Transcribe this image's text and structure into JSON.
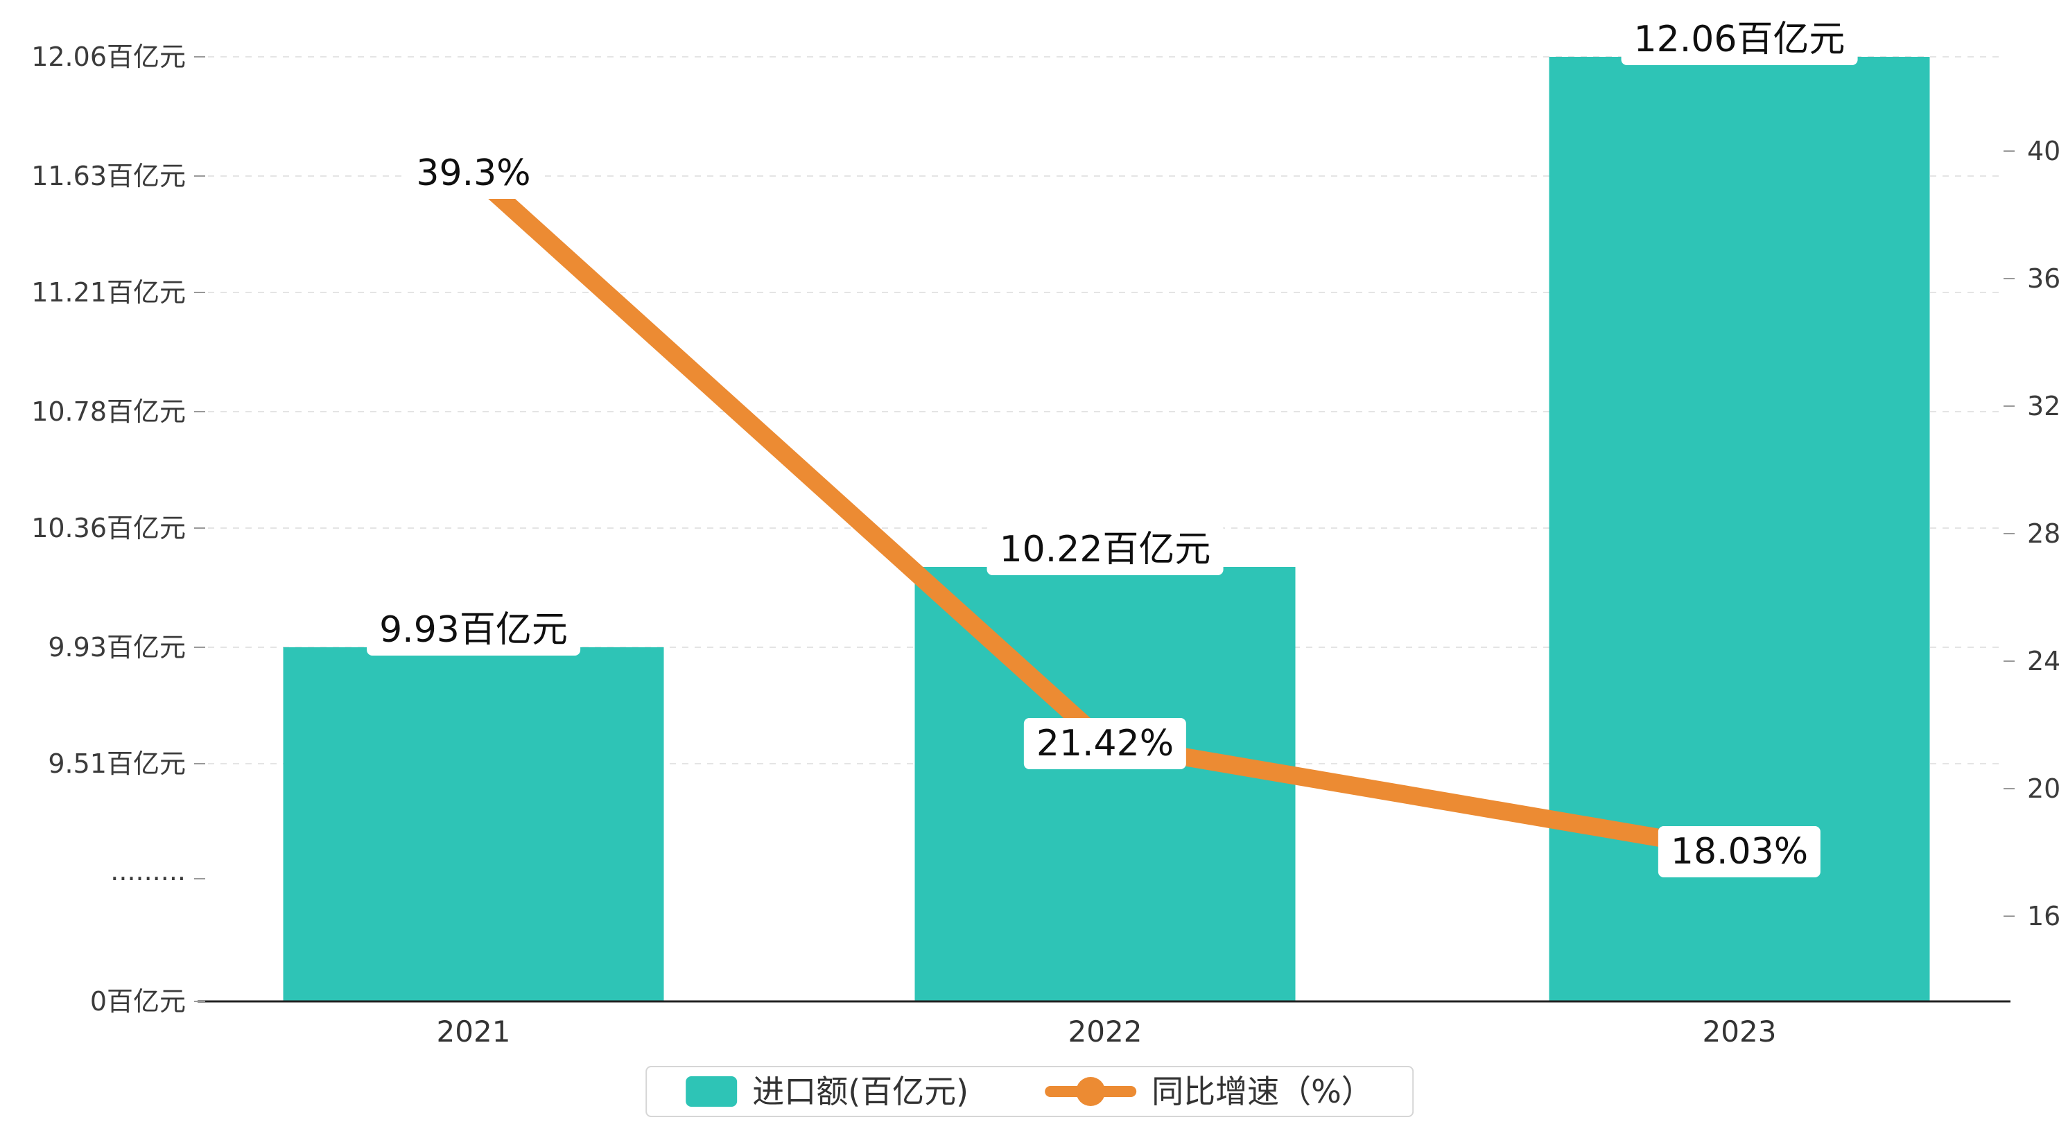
{
  "chart_data": {
    "type": "bar+line",
    "categories": [
      "2021",
      "2022",
      "2023"
    ],
    "series": [
      {
        "name": "进口额(百亿元)",
        "type": "bar",
        "axis": "left",
        "values": [
          9.93,
          10.22,
          12.06
        ],
        "value_labels": [
          "9.93百亿元",
          "10.22百亿元",
          "12.06百亿元"
        ],
        "color": "#2ec4b6"
      },
      {
        "name": "同比增速（%）",
        "type": "line",
        "axis": "right",
        "values": [
          39.3,
          21.42,
          18.03
        ],
        "value_labels": [
          "39.3%",
          "21.42%",
          "18.03%"
        ],
        "color": "#ec8b33"
      }
    ],
    "left_axis": {
      "has_break": true,
      "ticks": [
        {
          "label": "12.06百亿元",
          "value": 12.06
        },
        {
          "label": "11.63百亿元",
          "value": 11.63
        },
        {
          "label": "11.21百亿元",
          "value": 11.21
        },
        {
          "label": "10.78百亿元",
          "value": 10.78
        },
        {
          "label": "10.36百亿元",
          "value": 10.36
        },
        {
          "label": "9.93百亿元",
          "value": 9.93
        },
        {
          "label": "9.51百亿元",
          "value": 9.51
        },
        {
          "label": "·········",
          "value": null
        },
        {
          "label": "0百亿元",
          "value": 0
        }
      ]
    },
    "right_axis": {
      "ticks": [
        {
          "label": "40",
          "value": 40
        },
        {
          "label": "36",
          "value": 36
        },
        {
          "label": "32",
          "value": 32
        },
        {
          "label": "28",
          "value": 28
        },
        {
          "label": "24",
          "value": 24
        },
        {
          "label": "20",
          "value": 20
        },
        {
          "label": "16",
          "value": 16
        }
      ]
    },
    "legend": [
      {
        "label": "进口额(百亿元)",
        "marker": "bar"
      },
      {
        "label": "同比增速（%）",
        "marker": "line"
      }
    ],
    "colors": {
      "bar": "#2ec4b6",
      "line": "#ec8b33",
      "grid": "#e4e4e4",
      "axis_line": "#222222",
      "tick": "#999999",
      "text": "#3b3b3b"
    },
    "grid": true,
    "legend_position": "bottom-center"
  }
}
